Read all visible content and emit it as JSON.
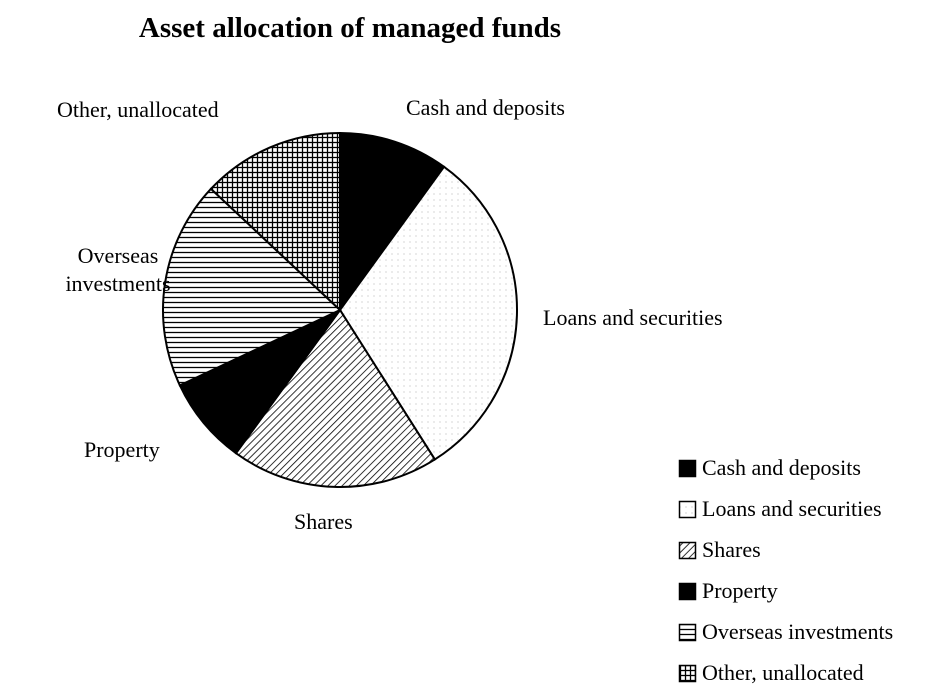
{
  "chart_data": {
    "type": "pie",
    "title": "Asset allocation of managed funds",
    "categories": [
      "Cash and deposits",
      "Loans and securities",
      "Shares",
      "Property",
      "Overseas investments",
      "Other, unallocated"
    ],
    "values": [
      10,
      31,
      19,
      8,
      19,
      13
    ],
    "colors": [
      "#000000",
      "#ffffff",
      "#ffffff",
      "#000000",
      "#ffffff",
      "#ffffff"
    ],
    "patterns": [
      "solid",
      "dots",
      "diagonal",
      "solid",
      "horizontal",
      "grid"
    ],
    "legend": "bottom-right"
  }
}
